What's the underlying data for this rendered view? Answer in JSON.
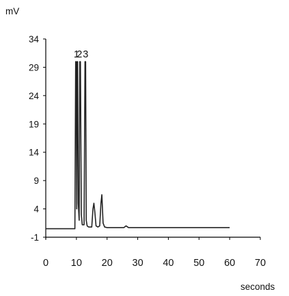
{
  "chart_data": {
    "type": "line",
    "title": "",
    "ylabel": "mV",
    "xlabel": "seconds",
    "xlim": [
      0,
      70
    ],
    "ylim": [
      -1,
      34
    ],
    "xticks": [
      "0",
      "10",
      "20",
      "30",
      "40",
      "50",
      "60",
      "70"
    ],
    "yticks": [
      "-1",
      "4",
      "9",
      "14",
      "19",
      "24",
      "29",
      "34"
    ],
    "grid": false,
    "line_color": "#222222",
    "peak_labels": [
      {
        "text": "1",
        "x": 10.0,
        "y": 30.0
      },
      {
        "text": "2",
        "x": 11.0,
        "y": 30.0
      },
      {
        "text": "3",
        "x": 13.0,
        "y": 30.0
      }
    ],
    "series": [
      {
        "x": [
          0,
          9.5,
          9.75,
          9.9,
          10.1,
          10.25,
          10.4,
          10.6,
          10.9,
          11.1,
          11.3,
          11.6,
          11.9,
          12.5,
          12.8,
          13.0,
          13.2,
          13.5,
          14.0,
          15.0,
          15.4,
          15.7,
          16.0,
          16.4,
          17.0,
          17.6,
          18.0,
          18.3,
          18.7,
          19.2,
          20.0,
          25.5,
          26.2,
          27.0,
          60.0
        ],
        "y": [
          0.5,
          0.5,
          30.0,
          30.0,
          4.0,
          30.0,
          30.0,
          5.0,
          2.0,
          30.0,
          30.0,
          3.0,
          1.2,
          1.2,
          30.0,
          30.0,
          2.0,
          1.0,
          0.8,
          0.8,
          4.0,
          5.0,
          3.5,
          1.0,
          0.8,
          1.0,
          5.0,
          6.5,
          1.5,
          0.8,
          0.7,
          0.7,
          1.0,
          0.7,
          0.7
        ]
      }
    ]
  }
}
